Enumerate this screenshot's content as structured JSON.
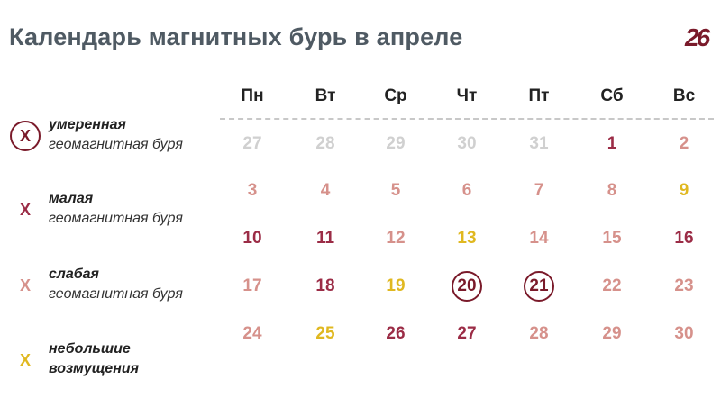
{
  "header": {
    "title": "Календарь магнитных бурь в апреле",
    "logo_text": "26"
  },
  "colors": {
    "moderate": "#7a1a2a",
    "small": "#9b2c46",
    "weak": "#d6918b",
    "minor": "#e0b820",
    "none": "#d0d0d0",
    "title": "#4f5a63"
  },
  "legend": [
    {
      "mark": "Х",
      "title": "умеренная",
      "desc": "геомагнитная буря",
      "level": "moderate",
      "circled": true
    },
    {
      "mark": "Х",
      "title": "малая",
      "desc": "геомагнитная буря",
      "level": "small",
      "circled": false
    },
    {
      "mark": "Х",
      "title": "слабая",
      "desc": "геомагнитная буря",
      "level": "weak",
      "circled": false
    },
    {
      "mark": "Х",
      "title": "небольшие",
      "desc": "возмущения",
      "level": "minor",
      "circled": false
    }
  ],
  "weekdays": [
    "Пн",
    "Вт",
    "Ср",
    "Чт",
    "Пт",
    "Сб",
    "Вс"
  ],
  "weeks": [
    [
      {
        "day": "27",
        "level": "none"
      },
      {
        "day": "28",
        "level": "none"
      },
      {
        "day": "29",
        "level": "none"
      },
      {
        "day": "30",
        "level": "none"
      },
      {
        "day": "31",
        "level": "none"
      },
      {
        "day": "1",
        "level": "small"
      },
      {
        "day": "2",
        "level": "weak"
      }
    ],
    [
      {
        "day": "3",
        "level": "weak"
      },
      {
        "day": "4",
        "level": "weak"
      },
      {
        "day": "5",
        "level": "weak"
      },
      {
        "day": "6",
        "level": "weak"
      },
      {
        "day": "7",
        "level": "weak"
      },
      {
        "day": "8",
        "level": "weak"
      },
      {
        "day": "9",
        "level": "minor"
      }
    ],
    [
      {
        "day": "10",
        "level": "small"
      },
      {
        "day": "11",
        "level": "small"
      },
      {
        "day": "12",
        "level": "weak"
      },
      {
        "day": "13",
        "level": "minor"
      },
      {
        "day": "14",
        "level": "weak"
      },
      {
        "day": "15",
        "level": "weak"
      },
      {
        "day": "16",
        "level": "small"
      }
    ],
    [
      {
        "day": "17",
        "level": "weak"
      },
      {
        "day": "18",
        "level": "small"
      },
      {
        "day": "19",
        "level": "minor"
      },
      {
        "day": "20",
        "level": "moderate",
        "circled": true
      },
      {
        "day": "21",
        "level": "moderate",
        "circled": true
      },
      {
        "day": "22",
        "level": "weak"
      },
      {
        "day": "23",
        "level": "weak"
      }
    ],
    [
      {
        "day": "24",
        "level": "weak"
      },
      {
        "day": "25",
        "level": "minor"
      },
      {
        "day": "26",
        "level": "small"
      },
      {
        "day": "27",
        "level": "small"
      },
      {
        "day": "28",
        "level": "weak"
      },
      {
        "day": "29",
        "level": "weak"
      },
      {
        "day": "30",
        "level": "weak"
      }
    ]
  ]
}
